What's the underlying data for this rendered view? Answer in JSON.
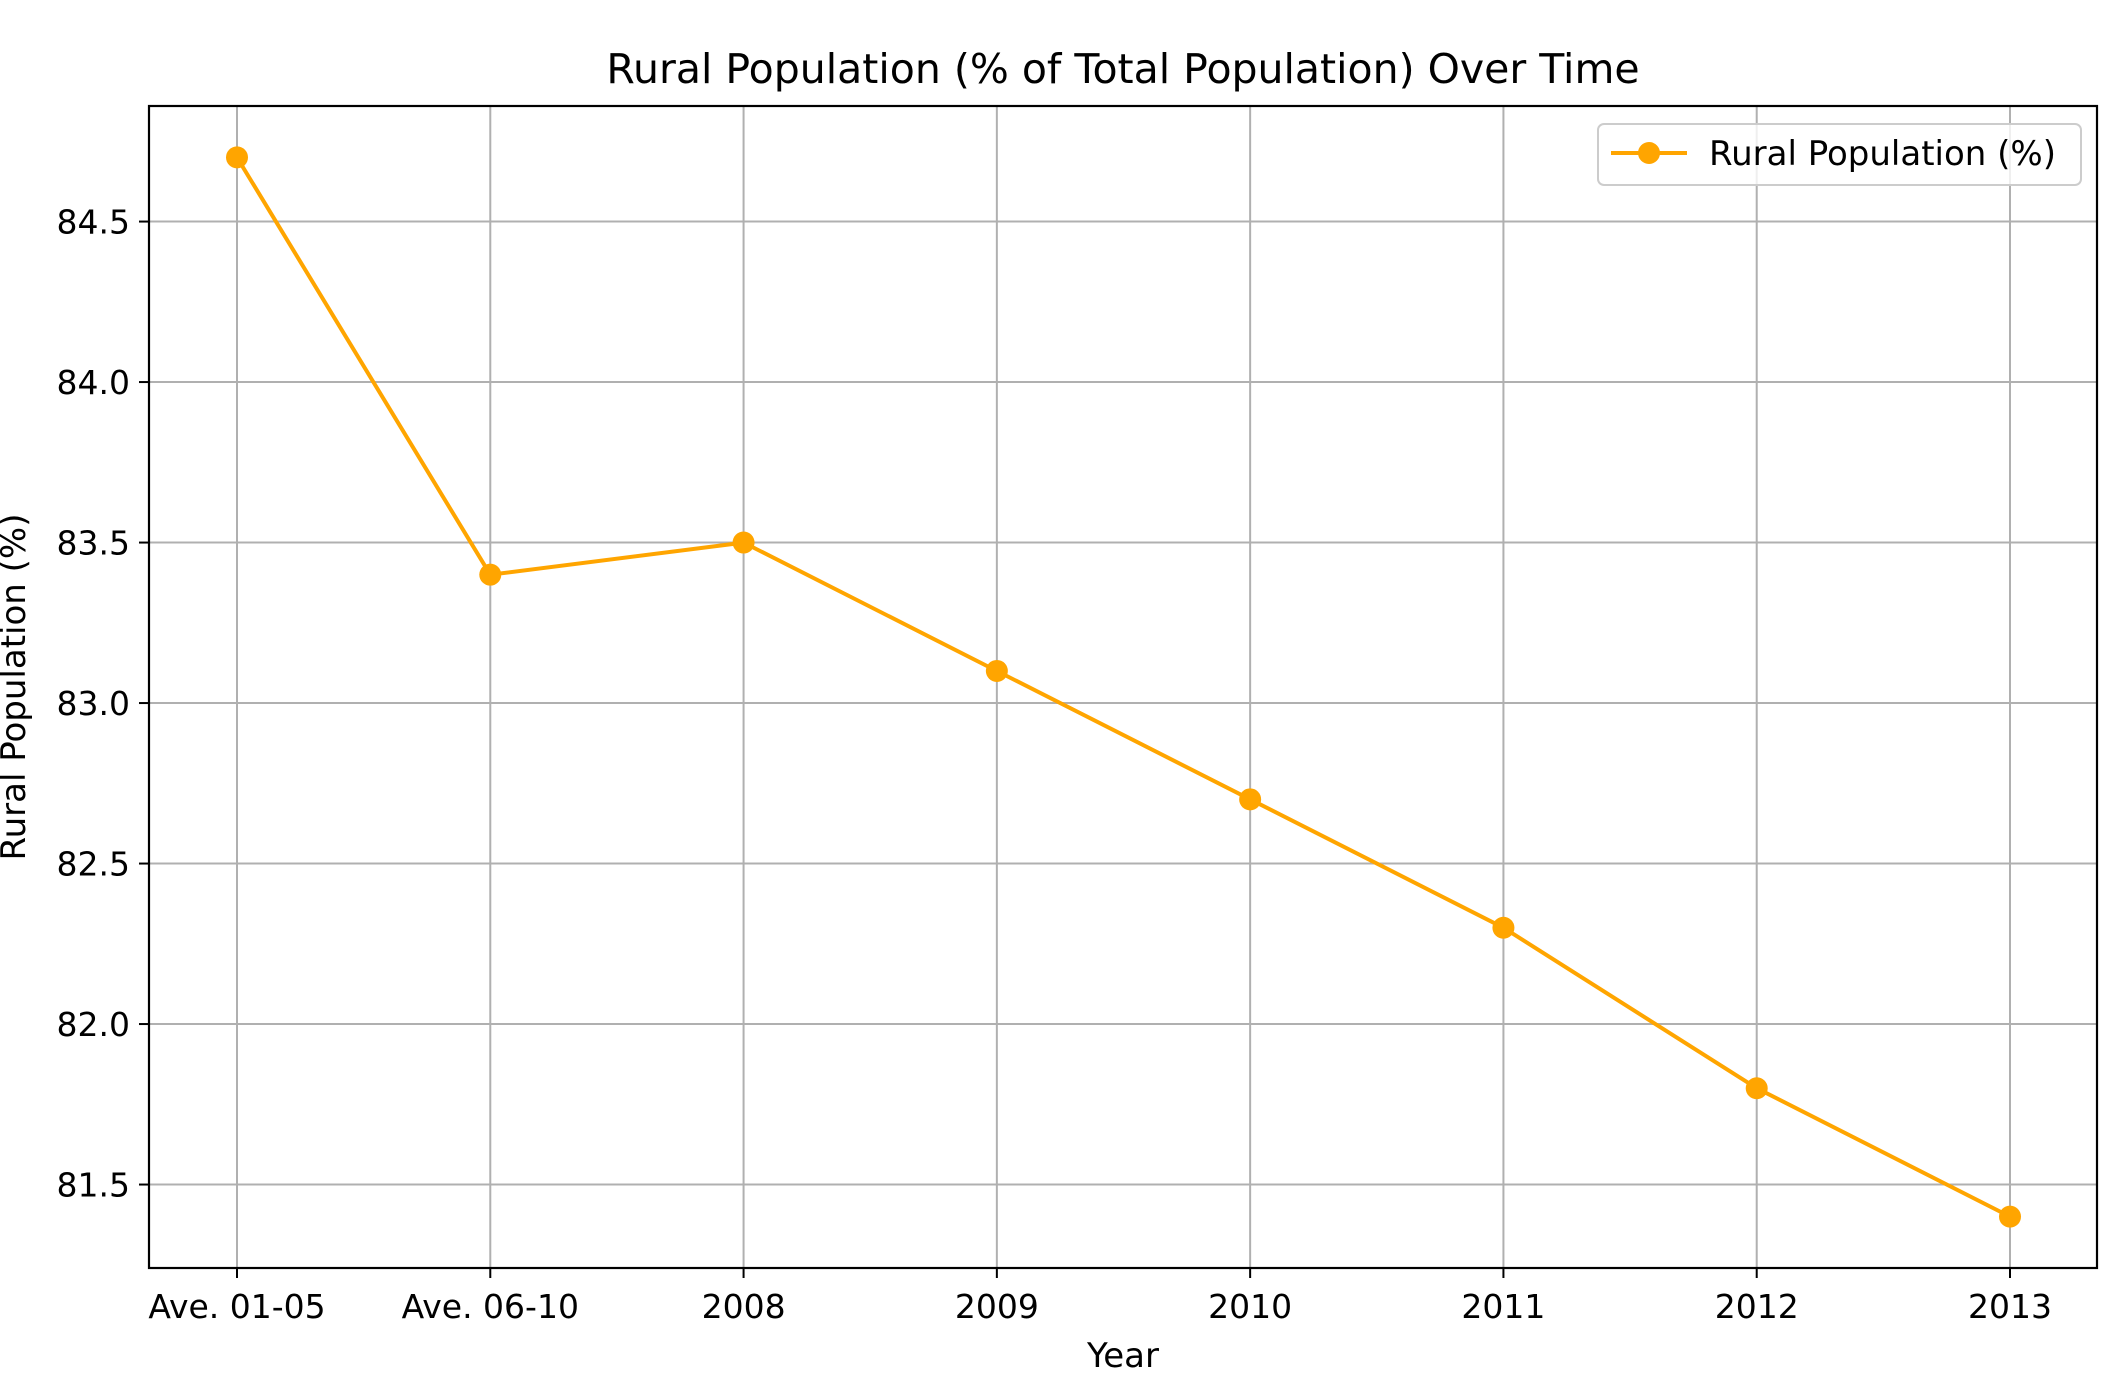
{
  "chart_data": {
    "type": "line",
    "title": "Rural Population (% of Total Population) Over Time",
    "xlabel": "Year",
    "ylabel": "Rural Population (%)",
    "categories": [
      "Ave. 01-05",
      "Ave. 06-10",
      "2008",
      "2009",
      "2010",
      "2011",
      "2012",
      "2013"
    ],
    "series": [
      {
        "name": "Rural Population (%)",
        "values": [
          84.7,
          83.4,
          83.5,
          83.1,
          82.7,
          82.3,
          81.8,
          81.4
        ],
        "color": "#ffa500",
        "marker": "circle"
      }
    ],
    "ylim": [
      81.24,
      84.86
    ],
    "yticks": [
      81.5,
      82.0,
      82.5,
      83.0,
      83.5,
      84.0,
      84.5
    ],
    "ytick_labels": [
      "81.5",
      "82.0",
      "82.5",
      "83.0",
      "83.5",
      "84.0",
      "84.5"
    ],
    "grid": true,
    "grid_color": "#b0b0b0",
    "legend_position": "upper right"
  }
}
